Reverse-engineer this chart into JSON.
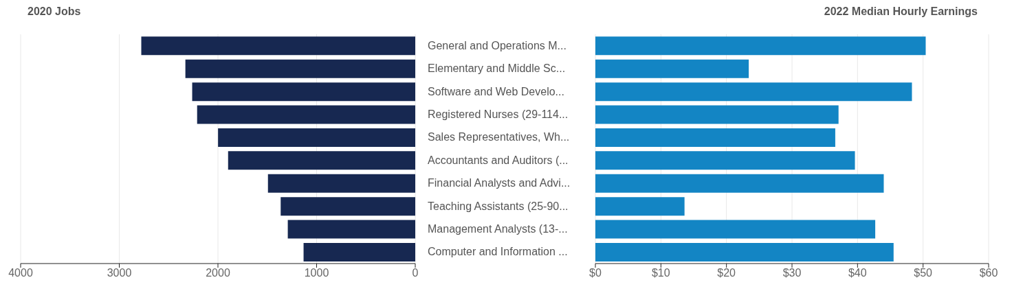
{
  "chart_data": [
    {
      "type": "bar",
      "orientation": "horizontal",
      "title": "2020 Jobs",
      "categories": [
        null,
        null,
        null,
        null,
        null,
        null,
        null,
        null,
        null,
        null
      ],
      "values": [
        2777,
        2330,
        2261,
        2211,
        1999,
        1897,
        1493,
        1364,
        1292,
        1132
      ],
      "color": "#172851",
      "xlim": [
        4000,
        0
      ],
      "xticks": [
        4000,
        3000,
        2000,
        1000,
        0
      ],
      "grid": "x",
      "tick_labels": "x"
    },
    {
      "type": "bar",
      "orientation": "horizontal",
      "title": "2022 Median Hourly Earnings",
      "categories": [
        "General and Operations M...",
        "Elementary and Middle Sc...",
        "Software and Web Develo...",
        "Registered Nurses (29-114...",
        "Sales Representatives, Wh...",
        "Accountants and Auditors (...",
        "Financial Analysts and Advi...",
        "Teaching Assistants (25-90...",
        "Management Analysts (13-...",
        "Computer and Information ..."
      ],
      "values": [
        50.4,
        23.4,
        48.3,
        37.1,
        36.6,
        39.6,
        44.0,
        13.6,
        42.7,
        45.5
      ],
      "color": "#1385c4",
      "xlim": [
        0,
        60
      ],
      "xticks": [
        {
          "value": 0,
          "label": "$0"
        },
        {
          "value": 10,
          "label": "$10"
        },
        {
          "value": 20,
          "label": "$20"
        },
        {
          "value": 30,
          "label": "$30"
        },
        {
          "value": 40,
          "label": "$40"
        },
        {
          "value": 50,
          "label": "$50"
        },
        {
          "value": 60,
          "label": "$60"
        }
      ],
      "grid": "x"
    }
  ]
}
